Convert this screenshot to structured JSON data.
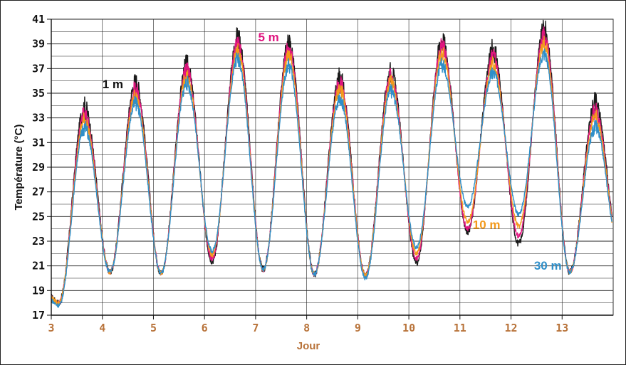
{
  "chart_data": {
    "type": "line",
    "title": "",
    "xlabel": "Jour",
    "ylabel": "Température (°C)",
    "xlim": [
      3,
      14
    ],
    "ylim": [
      17,
      41
    ],
    "yticks": [
      17,
      19,
      21,
      23,
      25,
      27,
      29,
      31,
      33,
      35,
      37,
      39,
      41
    ],
    "xticks": [
      3,
      4,
      5,
      6,
      7,
      8,
      9,
      10,
      11,
      12,
      13
    ],
    "grid": true,
    "colors": {
      "xaxis_text": "#b8733a",
      "frame": "#222222"
    },
    "series": [
      {
        "name": "1 m",
        "color": "#1a1a1a",
        "label_color": "#111111",
        "offset": 0.6,
        "label_pos": {
          "x": 4.0,
          "y": 35.4
        },
        "minima": [
          18.0,
          20.5,
          20.4,
          21.4,
          20.7,
          20.3,
          20.2,
          21.3,
          23.8,
          22.8,
          20.5
        ],
        "maxima": [
          33.8,
          35.8,
          37.2,
          39.5,
          39.0,
          36.2,
          36.7,
          39.3,
          38.5,
          40.1,
          34.1
        ]
      },
      {
        "name": "5 m",
        "color": "#e0157f",
        "label_color": "#e0157f",
        "offset": 0.3,
        "label_pos": {
          "x": 7.05,
          "y": 39.2
        },
        "minima": [
          18.0,
          20.5,
          20.4,
          21.6,
          20.7,
          20.3,
          20.2,
          21.6,
          24.0,
          23.4,
          20.5
        ],
        "maxima": [
          33.3,
          35.3,
          36.8,
          39.0,
          38.6,
          35.8,
          36.3,
          38.8,
          37.9,
          39.6,
          33.5
        ]
      },
      {
        "name": "10 m",
        "color": "#f39a1c",
        "label_color": "#f39a1c",
        "offset": 0.15,
        "label_pos": {
          "x": 11.25,
          "y": 24.0
        },
        "minima": [
          18.0,
          20.5,
          20.4,
          21.9,
          20.7,
          20.3,
          20.2,
          22.0,
          24.6,
          24.2,
          20.5
        ],
        "maxima": [
          32.8,
          34.8,
          36.3,
          38.4,
          38.0,
          35.3,
          35.8,
          38.2,
          37.3,
          39.0,
          33.0
        ]
      },
      {
        "name": "30 m",
        "color": "#2f8fc9",
        "label_color": "#2f8fc9",
        "offset": 0.0,
        "label_pos": {
          "x": 12.45,
          "y": 20.7
        },
        "minima": [
          17.8,
          20.5,
          20.4,
          22.2,
          20.7,
          20.3,
          20.0,
          22.5,
          25.8,
          25.2,
          20.5
        ],
        "maxima": [
          32.2,
          34.2,
          35.8,
          37.8,
          37.2,
          34.6,
          35.2,
          37.3,
          36.6,
          38.2,
          32.2
        ]
      }
    ]
  }
}
